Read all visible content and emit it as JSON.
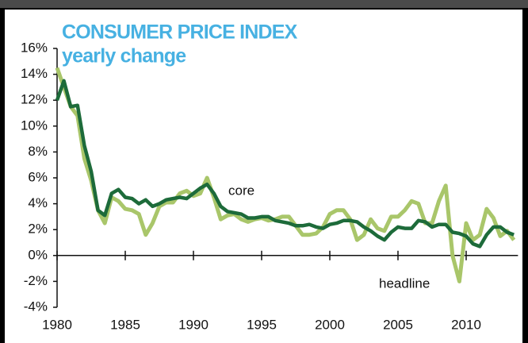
{
  "chart_data": {
    "type": "line",
    "title": "CONSUMER PRICE INDEX",
    "subtitle": "yearly change",
    "x": [
      1980,
      1980.5,
      1981,
      1981.5,
      1982,
      1982.5,
      1983,
      1983.5,
      1984,
      1984.5,
      1985,
      1985.5,
      1986,
      1986.5,
      1987,
      1987.5,
      1988,
      1988.5,
      1989,
      1989.5,
      1990,
      1990.5,
      1991,
      1991.5,
      1992,
      1992.5,
      1993,
      1993.5,
      1994,
      1994.5,
      1995,
      1995.5,
      1996,
      1996.5,
      1997,
      1997.5,
      1998,
      1998.5,
      1999,
      1999.5,
      2000,
      2000.5,
      2001,
      2001.5,
      2002,
      2002.5,
      2003,
      2003.5,
      2004,
      2004.5,
      2005,
      2005.5,
      2006,
      2006.5,
      2007,
      2007.5,
      2008,
      2008.5,
      2009,
      2009.5,
      2010,
      2010.5,
      2011,
      2011.5,
      2012,
      2012.5,
      2013,
      2013.5
    ],
    "series": [
      {
        "name": "headline",
        "color": "#a9c66a",
        "values": [
          14.5,
          13.0,
          11.5,
          10.8,
          7.5,
          5.8,
          3.5,
          2.5,
          4.5,
          4.2,
          3.6,
          3.5,
          3.2,
          1.6,
          2.5,
          3.8,
          4.1,
          4.1,
          4.8,
          5.0,
          4.6,
          4.8,
          6.0,
          4.5,
          2.8,
          3.1,
          3.2,
          2.8,
          2.6,
          2.8,
          2.9,
          2.7,
          2.8,
          3.0,
          3.0,
          2.3,
          1.6,
          1.6,
          1.7,
          2.2,
          3.2,
          3.5,
          3.5,
          2.8,
          1.2,
          1.6,
          2.8,
          2.1,
          1.9,
          3.0,
          3.0,
          3.5,
          4.2,
          4.0,
          2.5,
          2.5,
          4.2,
          5.4,
          0.0,
          -2.0,
          2.5,
          1.2,
          1.6,
          3.6,
          2.9,
          1.5,
          1.9,
          1.2
        ]
      },
      {
        "name": "core",
        "color": "#1d6b3a",
        "values": [
          12.0,
          13.5,
          11.5,
          11.6,
          8.5,
          6.5,
          3.5,
          3.1,
          4.8,
          5.1,
          4.5,
          4.4,
          4.0,
          4.3,
          3.8,
          4.0,
          4.3,
          4.4,
          4.5,
          4.4,
          4.8,
          5.2,
          5.5,
          4.8,
          3.8,
          3.4,
          3.3,
          3.2,
          2.9,
          2.9,
          3.0,
          3.0,
          2.7,
          2.6,
          2.5,
          2.3,
          2.3,
          2.4,
          2.2,
          2.1,
          2.4,
          2.5,
          2.7,
          2.7,
          2.6,
          2.2,
          1.9,
          1.5,
          1.2,
          1.8,
          2.2,
          2.1,
          2.1,
          2.7,
          2.6,
          2.2,
          2.4,
          2.4,
          1.8,
          1.7,
          1.5,
          0.9,
          0.7,
          1.6,
          2.2,
          2.2,
          1.8,
          1.6
        ]
      }
    ],
    "xlim": [
      1980,
      2013.8
    ],
    "xticks": [
      1980,
      1985,
      1990,
      1995,
      2000,
      2005,
      2010
    ],
    "ylim": [
      -4,
      16
    ],
    "yticks": [
      {
        "value": -4,
        "label": "-4%"
      },
      {
        "value": -2,
        "label": "-2%"
      },
      {
        "value": 0,
        "label": "0%"
      },
      {
        "value": 2,
        "label": "2%"
      },
      {
        "value": 4,
        "label": "4%"
      },
      {
        "value": 6,
        "label": "6%"
      },
      {
        "value": 8,
        "label": "8%"
      },
      {
        "value": 10,
        "label": "10%"
      },
      {
        "value": 12,
        "label": "12%"
      },
      {
        "value": 14,
        "label": "14%"
      },
      {
        "value": 16,
        "label": "16%"
      }
    ],
    "grid": false
  }
}
